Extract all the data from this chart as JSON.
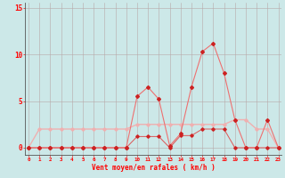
{
  "hours": [
    0,
    1,
    2,
    3,
    4,
    5,
    6,
    7,
    8,
    9,
    10,
    11,
    12,
    13,
    14,
    15,
    16,
    17,
    18,
    19,
    20,
    21,
    22,
    23
  ],
  "wind_gust": [
    0,
    0,
    0,
    0,
    0,
    0,
    0,
    0,
    0,
    0,
    5.5,
    6.5,
    5.2,
    0.2,
    1.5,
    6.5,
    10.3,
    11.2,
    8.0,
    3.0,
    0,
    0,
    3.0,
    0
  ],
  "wind_mean": [
    0,
    2,
    2,
    2,
    2,
    2,
    2,
    2,
    2,
    2,
    2.5,
    2.5,
    2.5,
    2.5,
    2.5,
    2.5,
    2.5,
    2.5,
    2.5,
    3,
    3,
    2,
    2,
    0
  ],
  "wind_lower": [
    0,
    0,
    0,
    0,
    0,
    0,
    0,
    0,
    0,
    0,
    1.2,
    1.2,
    1.2,
    0,
    1.3,
    1.3,
    2,
    2,
    2,
    0,
    0,
    0,
    0,
    0
  ],
  "bg_color": "#cce8e8",
  "grid_color": "#b8a8a8",
  "line_gust_color": "#ee7070",
  "line_mean_color": "#f0b0b0",
  "line_lower_color": "#dd5555",
  "marker_gust_color": "#cc2222",
  "marker_mean_color": "#f0b0b0",
  "marker_lower_color": "#cc2222",
  "xlabel": "Vent moyen/en rafales ( km/h )",
  "xlim": [
    -0.3,
    23.3
  ],
  "ylim": [
    -0.8,
    15.5
  ],
  "yticks": [
    0,
    5,
    10,
    15
  ],
  "xticks": [
    0,
    1,
    2,
    3,
    4,
    5,
    6,
    7,
    8,
    9,
    10,
    11,
    12,
    13,
    14,
    15,
    16,
    17,
    18,
    19,
    20,
    21,
    22,
    23
  ]
}
